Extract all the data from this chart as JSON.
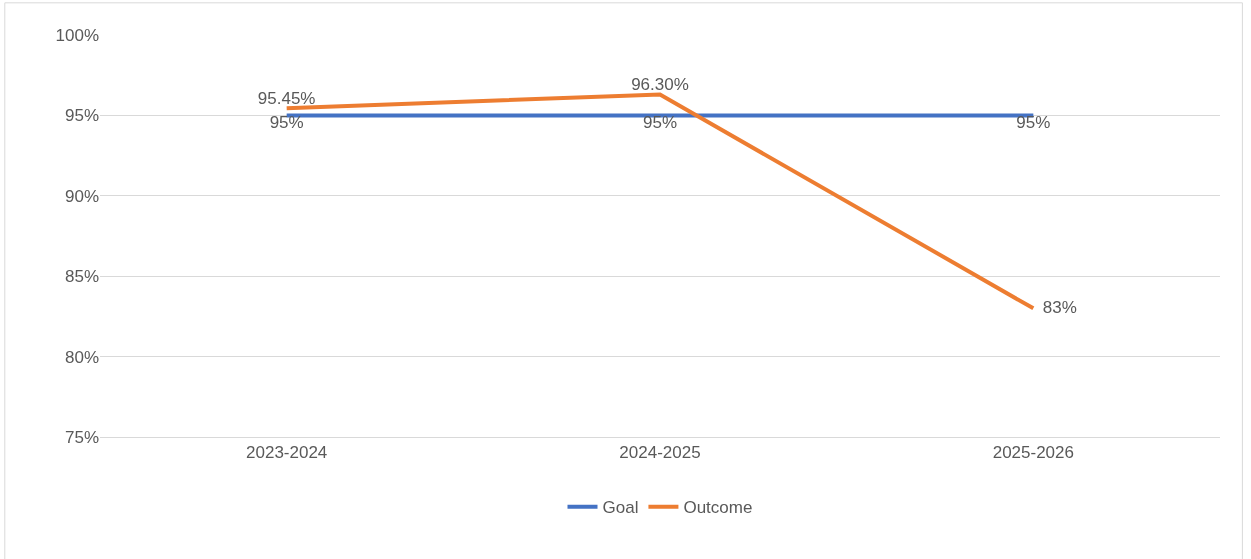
{
  "chart_data": {
    "type": "line",
    "categories": [
      "2023-2024",
      "2024-2025",
      "2025-2026"
    ],
    "series": [
      {
        "name": "Goal",
        "color": "#4472c4",
        "values": [
          95,
          95,
          95
        ],
        "value_labels": [
          "95%",
          "95%",
          "95%"
        ]
      },
      {
        "name": "Outcome",
        "color": "#ed7d31",
        "values": [
          95.45,
          96.3,
          83
        ],
        "value_labels": [
          "95.45%",
          "96.30%",
          "83%"
        ]
      }
    ],
    "ylim": [
      75,
      100
    ],
    "yticks": [
      {
        "value": 75,
        "label": "75%"
      },
      {
        "value": 80,
        "label": "80%"
      },
      {
        "value": 85,
        "label": "85%"
      },
      {
        "value": 90,
        "label": "90%"
      },
      {
        "value": 95,
        "label": "95%"
      },
      {
        "value": 100,
        "label": "100%"
      }
    ],
    "grid": "y",
    "legend": "bottom",
    "marker": "none",
    "line_style": "solid"
  }
}
